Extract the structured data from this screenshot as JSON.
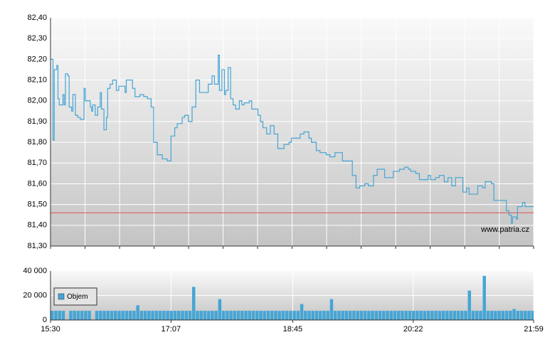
{
  "chart_data": [
    {
      "type": "line",
      "step": true,
      "x": [
        930,
        932,
        932,
        933,
        935,
        936,
        937,
        940,
        941,
        942,
        944,
        945,
        947,
        948,
        950,
        952,
        954,
        957,
        958,
        960,
        962,
        963,
        964,
        966,
        968,
        970,
        971,
        973,
        975,
        976,
        978,
        980,
        983,
        985,
        990,
        991,
        994,
        996,
        998,
        1002,
        1005,
        1008,
        1011,
        1013,
        1016,
        1020,
        1024,
        1027,
        1030,
        1032,
        1036,
        1038,
        1041,
        1044,
        1047,
        1050,
        1053,
        1057,
        1060,
        1062,
        1065,
        1066,
        1068,
        1070,
        1071,
        1073,
        1075,
        1077,
        1079,
        1082,
        1084,
        1086,
        1090,
        1092,
        1097,
        1099,
        1101,
        1104,
        1107,
        1110,
        1113,
        1116,
        1118,
        1122,
        1124,
        1128,
        1131,
        1134,
        1138,
        1140,
        1144,
        1147,
        1152,
        1155,
        1159,
        1162,
        1165,
        1170,
        1173,
        1176,
        1179,
        1183,
        1186,
        1190,
        1193,
        1197,
        1199,
        1203,
        1206,
        1209,
        1211,
        1215,
        1218,
        1220,
        1224,
        1227,
        1232,
        1234,
        1236,
        1240,
        1243,
        1247,
        1250,
        1253,
        1256,
        1259,
        1262,
        1265,
        1267,
        1271,
        1274,
        1278,
        1280,
        1285,
        1287,
        1290,
        1295,
        1297,
        1299,
        1301,
        1302,
        1305,
        1306,
        1310,
        1312,
        1319
      ],
      "series": [
        {
          "color": "#45a5d5",
          "values": [
            82.2,
            82.2,
            81.81,
            82.15,
            82.17,
            82.01,
            81.98,
            82.03,
            81.98,
            82.13,
            82.12,
            81.97,
            81.95,
            82.03,
            81.93,
            81.92,
            81.91,
            82.06,
            82.0,
            82.0,
            81.97,
            81.95,
            81.98,
            81.93,
            81.97,
            82.04,
            81.96,
            81.86,
            81.92,
            82.06,
            82.08,
            82.1,
            82.05,
            82.07,
            82.04,
            82.1,
            82.1,
            82.06,
            82.02,
            82.03,
            82.02,
            82.01,
            81.97,
            81.8,
            81.74,
            81.72,
            81.71,
            81.83,
            81.87,
            81.89,
            81.92,
            81.93,
            81.9,
            81.97,
            82.1,
            82.04,
            82.04,
            82.08,
            82.12,
            82.08,
            82.22,
            82.05,
            82.15,
            82.03,
            82.05,
            82.16,
            82.01,
            81.98,
            81.96,
            82.0,
            81.98,
            81.99,
            82.0,
            81.96,
            81.93,
            81.9,
            81.87,
            81.84,
            81.88,
            81.84,
            81.77,
            81.77,
            81.79,
            81.8,
            81.82,
            81.82,
            81.84,
            81.85,
            81.82,
            81.8,
            81.76,
            81.75,
            81.74,
            81.73,
            81.75,
            81.75,
            81.71,
            81.71,
            81.64,
            81.58,
            81.59,
            81.6,
            81.59,
            81.64,
            81.67,
            81.67,
            81.63,
            81.63,
            81.66,
            81.66,
            81.67,
            81.68,
            81.67,
            81.66,
            81.65,
            81.62,
            81.62,
            81.64,
            81.62,
            81.63,
            81.64,
            81.61,
            81.63,
            81.59,
            81.63,
            81.63,
            81.56,
            81.58,
            81.55,
            81.55,
            81.59,
            81.58,
            81.61,
            81.6,
            81.52,
            81.52,
            81.52,
            81.47,
            81.45,
            81.41,
            81.44,
            81.43,
            81.49,
            81.51,
            81.49,
            81.49
          ]
        }
      ],
      "hline": {
        "value": 81.46,
        "color": "#e05050"
      },
      "xlim": [
        930,
        1319
      ],
      "xticks": [
        930,
        957.8,
        985.6,
        1013.4,
        1041.2,
        1068.9,
        1096.7,
        1124.5,
        1152.3,
        1180.1,
        1207.9,
        1235.7,
        1263.5,
        1291.3,
        1319
      ],
      "ylim": [
        81.3,
        82.4
      ],
      "yticks": [
        {
          "value": 81.3,
          "label": "81,30"
        },
        {
          "value": 81.4,
          "label": "81,40"
        },
        {
          "value": 81.5,
          "label": "81,50"
        },
        {
          "value": 81.6,
          "label": "81,60"
        },
        {
          "value": 81.7,
          "label": "81,70"
        },
        {
          "value": 81.8,
          "label": "81,80"
        },
        {
          "value": 81.9,
          "label": "81,90"
        },
        {
          "value": 82.0,
          "label": "82,00"
        },
        {
          "value": 82.1,
          "label": "82,10"
        },
        {
          "value": 82.2,
          "label": "82,20"
        },
        {
          "value": 82.3,
          "label": "82,30"
        },
        {
          "value": 82.4,
          "label": "82,40"
        }
      ],
      "grid": true,
      "annotation": "www.patria.cz"
    },
    {
      "type": "bar",
      "x": [
        930,
        933,
        936,
        939,
        942,
        945,
        948,
        951,
        954,
        957,
        960,
        963,
        966,
        969,
        972,
        975,
        978,
        981,
        984,
        987,
        990,
        993,
        996,
        999,
        1002,
        1005,
        1008,
        1011,
        1014,
        1017,
        1020,
        1023,
        1026,
        1029,
        1032,
        1035,
        1038,
        1041,
        1044,
        1047,
        1050,
        1053,
        1056,
        1059,
        1062,
        1065,
        1068,
        1071,
        1074,
        1077,
        1080,
        1083,
        1086,
        1089,
        1092,
        1095,
        1098,
        1101,
        1104,
        1107,
        1110,
        1113,
        1116,
        1119,
        1122,
        1125,
        1128,
        1131,
        1134,
        1137,
        1140,
        1143,
        1146,
        1149,
        1152,
        1155,
        1158,
        1161,
        1164,
        1167,
        1170,
        1173,
        1176,
        1179,
        1182,
        1185,
        1188,
        1191,
        1194,
        1197,
        1200,
        1203,
        1206,
        1209,
        1212,
        1215,
        1218,
        1221,
        1224,
        1227,
        1230,
        1233,
        1236,
        1239,
        1242,
        1245,
        1248,
        1251,
        1254,
        1257,
        1260,
        1263,
        1266,
        1269,
        1272,
        1275,
        1278,
        1281,
        1284,
        1287,
        1290,
        1293,
        1296,
        1299,
        1302,
        1305,
        1308,
        1311,
        1314,
        1317
      ],
      "series": [
        {
          "name": "Objem",
          "color": "#45a5d5",
          "values": [
            7500,
            7500,
            7500,
            7500,
            0,
            7500,
            7500,
            7500,
            7500,
            7500,
            7500,
            0,
            7500,
            7500,
            7500,
            7500,
            7500,
            7500,
            7500,
            7500,
            7500,
            7500,
            7500,
            12000,
            7500,
            7500,
            7500,
            7500,
            7500,
            7500,
            7500,
            7500,
            7500,
            7500,
            7500,
            7500,
            7500,
            7500,
            27000,
            7500,
            7500,
            7500,
            7500,
            7500,
            7500,
            17000,
            7500,
            7500,
            7500,
            7500,
            7500,
            7500,
            7500,
            7500,
            7500,
            7500,
            7500,
            7500,
            7500,
            7500,
            7500,
            7500,
            7500,
            7500,
            7500,
            7500,
            7500,
            13000,
            7500,
            7500,
            7500,
            7500,
            7500,
            7500,
            7500,
            17000,
            7500,
            7500,
            7500,
            7500,
            7500,
            7500,
            7500,
            7500,
            7500,
            7500,
            7500,
            7500,
            7500,
            7500,
            7500,
            7500,
            7500,
            7500,
            7500,
            7500,
            7500,
            7500,
            7500,
            7500,
            7500,
            7500,
            7500,
            7500,
            7500,
            7500,
            7500,
            7500,
            7500,
            7500,
            7500,
            7500,
            24000,
            7500,
            7500,
            7500,
            36000,
            7500,
            7500,
            7500,
            7500,
            7500,
            7500,
            7500,
            9000,
            7500,
            7500,
            7500,
            7500,
            7500
          ]
        }
      ],
      "xlim": [
        930,
        1319
      ],
      "xticks": [
        {
          "value": 930,
          "label": "15:30"
        },
        {
          "value": 1027,
          "label": "17:07"
        },
        {
          "value": 1125,
          "label": "18:45"
        },
        {
          "value": 1222,
          "label": "20:22"
        },
        {
          "value": 1319,
          "label": "21:59"
        }
      ],
      "ylim": [
        0,
        40000
      ],
      "yticks": [
        0,
        {
          "value": 20000,
          "label": "20 000"
        },
        {
          "value": 40000,
          "label": "40 000"
        }
      ],
      "grid": true,
      "legend": "lower-left"
    }
  ]
}
